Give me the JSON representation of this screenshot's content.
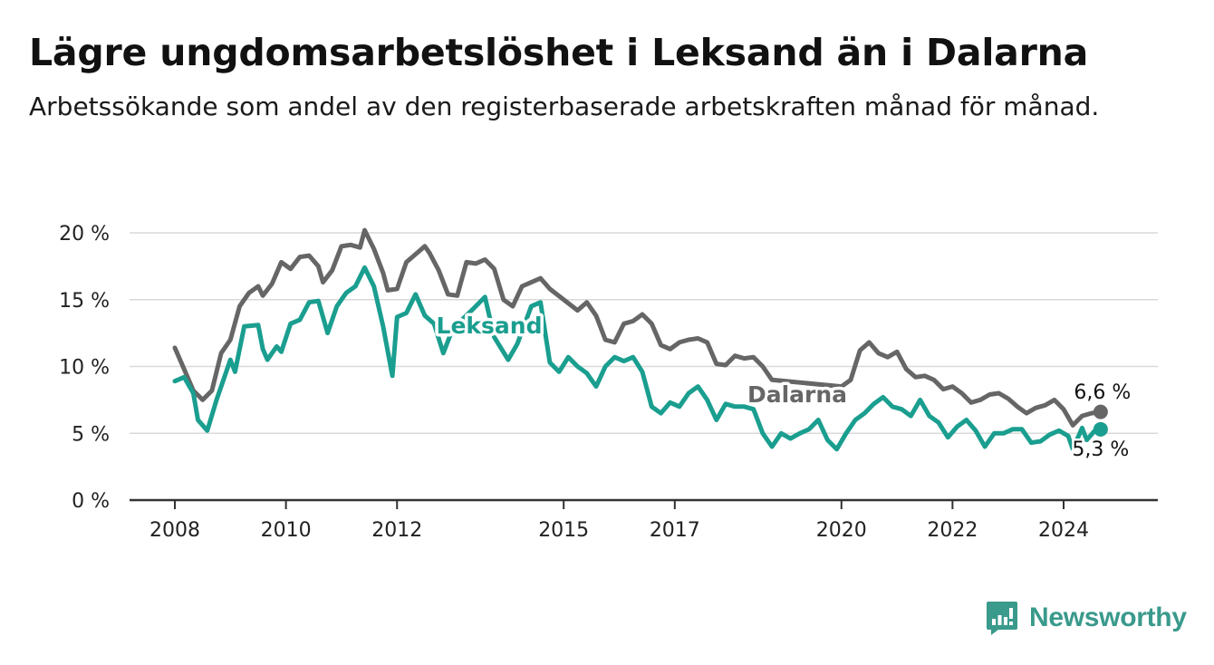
{
  "title": "Lägre ungdomsarbetslöshet i Leksand än i Dalarna",
  "subtitle": "Arbetssökande som andel av den registerbaserade arbetskraften månad för månad.",
  "brand": {
    "name": "Newsworthy",
    "icon": "newsworthy-logo-icon",
    "color": "#3a9a8c"
  },
  "chart_data": {
    "type": "line",
    "title": "Lägre ungdomsarbetslöshet i Leksand än i Dalarna",
    "subtitle": "Arbetssökande som andel av den registerbaserade arbetskraften månad för månad.",
    "xlabel": "",
    "ylabel": "",
    "ylim": [
      0,
      20
    ],
    "xlim": [
      "2008-01",
      "2025-06"
    ],
    "grid": true,
    "legend": "inline labels",
    "y_ticks": [
      0,
      5,
      10,
      15,
      20
    ],
    "y_tick_labels": [
      "0 %",
      "5 %",
      "10 %",
      "15 %",
      "20 %"
    ],
    "x_ticks": [
      "2008-01",
      "2010-01",
      "2012-01",
      "2015-01",
      "2017-01",
      "2020-01",
      "2022-01",
      "2024-01"
    ],
    "x_tick_labels": [
      "2008",
      "2010",
      "2012",
      "2015",
      "2017",
      "2020",
      "2022",
      "2024"
    ],
    "series": [
      {
        "name": "Dalarna",
        "color": "#666666",
        "end_value_label": "6,6 %",
        "points": [
          [
            "2008-01",
            11.4
          ],
          [
            "2008-03",
            9.8
          ],
          [
            "2008-05",
            8.2
          ],
          [
            "2008-07",
            7.5
          ],
          [
            "2008-09",
            8.2
          ],
          [
            "2008-11",
            11.0
          ],
          [
            "2009-01",
            12.0
          ],
          [
            "2009-03",
            14.5
          ],
          [
            "2009-05",
            15.5
          ],
          [
            "2009-07",
            16.0
          ],
          [
            "2009-08",
            15.3
          ],
          [
            "2009-10",
            16.2
          ],
          [
            "2009-12",
            17.8
          ],
          [
            "2010-02",
            17.3
          ],
          [
            "2010-04",
            18.2
          ],
          [
            "2010-06",
            18.3
          ],
          [
            "2010-08",
            17.5
          ],
          [
            "2010-09",
            16.3
          ],
          [
            "2010-11",
            17.2
          ],
          [
            "2011-01",
            19.0
          ],
          [
            "2011-03",
            19.1
          ],
          [
            "2011-05",
            18.9
          ],
          [
            "2011-06",
            20.2
          ],
          [
            "2011-08",
            18.8
          ],
          [
            "2011-10",
            17.0
          ],
          [
            "2011-11",
            15.7
          ],
          [
            "2012-01",
            15.8
          ],
          [
            "2012-03",
            17.8
          ],
          [
            "2012-05",
            18.4
          ],
          [
            "2012-07",
            19.0
          ],
          [
            "2012-08",
            18.5
          ],
          [
            "2012-10",
            17.2
          ],
          [
            "2012-12",
            15.4
          ],
          [
            "2013-02",
            15.3
          ],
          [
            "2013-04",
            17.8
          ],
          [
            "2013-06",
            17.7
          ],
          [
            "2013-08",
            18.0
          ],
          [
            "2013-10",
            17.3
          ],
          [
            "2013-12",
            15.0
          ],
          [
            "2014-02",
            14.5
          ],
          [
            "2014-04",
            16.0
          ],
          [
            "2014-06",
            16.3
          ],
          [
            "2014-08",
            16.6
          ],
          [
            "2014-10",
            15.8
          ],
          [
            "2015-04",
            14.2
          ],
          [
            "2015-06",
            14.8
          ],
          [
            "2015-08",
            13.8
          ],
          [
            "2015-10",
            12.0
          ],
          [
            "2015-12",
            11.8
          ],
          [
            "2016-02",
            13.2
          ],
          [
            "2016-04",
            13.4
          ],
          [
            "2016-06",
            13.9
          ],
          [
            "2016-08",
            13.2
          ],
          [
            "2016-10",
            11.6
          ],
          [
            "2016-12",
            11.3
          ],
          [
            "2017-02",
            11.8
          ],
          [
            "2017-04",
            12.0
          ],
          [
            "2017-06",
            12.1
          ],
          [
            "2017-08",
            11.8
          ],
          [
            "2017-10",
            10.2
          ],
          [
            "2017-12",
            10.1
          ],
          [
            "2018-02",
            10.8
          ],
          [
            "2018-04",
            10.6
          ],
          [
            "2018-06",
            10.7
          ],
          [
            "2018-08",
            10.0
          ],
          [
            "2018-10",
            9.0
          ],
          [
            "2020-01",
            8.5
          ],
          [
            "2020-03",
            9.0
          ],
          [
            "2020-05",
            11.2
          ],
          [
            "2020-07",
            11.8
          ],
          [
            "2020-09",
            11.0
          ],
          [
            "2020-11",
            10.7
          ],
          [
            "2021-01",
            11.1
          ],
          [
            "2021-03",
            9.8
          ],
          [
            "2021-05",
            9.2
          ],
          [
            "2021-07",
            9.3
          ],
          [
            "2021-09",
            9.0
          ],
          [
            "2021-11",
            8.3
          ],
          [
            "2022-01",
            8.5
          ],
          [
            "2022-03",
            8.0
          ],
          [
            "2022-05",
            7.3
          ],
          [
            "2022-07",
            7.5
          ],
          [
            "2022-09",
            7.9
          ],
          [
            "2022-11",
            8.0
          ],
          [
            "2023-01",
            7.6
          ],
          [
            "2023-03",
            7.0
          ],
          [
            "2023-05",
            6.5
          ],
          [
            "2023-07",
            6.9
          ],
          [
            "2023-09",
            7.1
          ],
          [
            "2023-11",
            7.5
          ],
          [
            "2024-01",
            6.8
          ],
          [
            "2024-03",
            5.6
          ],
          [
            "2024-05",
            6.3
          ],
          [
            "2024-07",
            6.5
          ],
          [
            "2024-09",
            6.6
          ]
        ]
      },
      {
        "name": "Leksand",
        "color": "#1a9e8f",
        "end_value_label": "5,3 %",
        "points": [
          [
            "2008-01",
            8.9
          ],
          [
            "2008-03",
            9.2
          ],
          [
            "2008-05",
            8.0
          ],
          [
            "2008-06",
            6.0
          ],
          [
            "2008-08",
            5.2
          ],
          [
            "2008-10",
            7.5
          ],
          [
            "2009-01",
            10.5
          ],
          [
            "2009-02",
            9.6
          ],
          [
            "2009-04",
            13.0
          ],
          [
            "2009-07",
            13.1
          ],
          [
            "2009-08",
            11.3
          ],
          [
            "2009-09",
            10.5
          ],
          [
            "2009-11",
            11.5
          ],
          [
            "2009-12",
            11.1
          ],
          [
            "2010-02",
            13.2
          ],
          [
            "2010-04",
            13.5
          ],
          [
            "2010-06",
            14.8
          ],
          [
            "2010-08",
            14.9
          ],
          [
            "2010-10",
            12.5
          ],
          [
            "2010-12",
            14.5
          ],
          [
            "2011-02",
            15.5
          ],
          [
            "2011-04",
            16.0
          ],
          [
            "2011-06",
            17.4
          ],
          [
            "2011-08",
            16.0
          ],
          [
            "2011-10",
            13.0
          ],
          [
            "2011-12",
            9.3
          ],
          [
            "2012-01",
            13.7
          ],
          [
            "2012-03",
            14.0
          ],
          [
            "2012-05",
            15.4
          ],
          [
            "2012-07",
            13.8
          ],
          [
            "2012-09",
            13.2
          ],
          [
            "2012-11",
            11.0
          ],
          [
            "2013-01",
            12.8
          ],
          [
            "2013-06",
            14.5
          ],
          [
            "2013-08",
            15.2
          ],
          [
            "2013-10",
            12.2
          ],
          [
            "2014-01",
            10.5
          ],
          [
            "2014-03",
            11.7
          ],
          [
            "2014-06",
            14.5
          ],
          [
            "2014-08",
            14.8
          ],
          [
            "2014-10",
            10.3
          ],
          [
            "2014-12",
            9.6
          ],
          [
            "2015-02",
            10.7
          ],
          [
            "2015-04",
            10.0
          ],
          [
            "2015-06",
            9.5
          ],
          [
            "2015-08",
            8.5
          ],
          [
            "2015-10",
            10.0
          ],
          [
            "2015-12",
            10.7
          ],
          [
            "2016-02",
            10.4
          ],
          [
            "2016-04",
            10.7
          ],
          [
            "2016-06",
            9.6
          ],
          [
            "2016-08",
            7.0
          ],
          [
            "2016-10",
            6.5
          ],
          [
            "2016-12",
            7.3
          ],
          [
            "2017-02",
            7.0
          ],
          [
            "2017-04",
            8.0
          ],
          [
            "2017-06",
            8.5
          ],
          [
            "2017-08",
            7.5
          ],
          [
            "2017-10",
            6.0
          ],
          [
            "2017-12",
            7.2
          ],
          [
            "2018-02",
            7.0
          ],
          [
            "2018-04",
            7.0
          ],
          [
            "2018-06",
            6.8
          ],
          [
            "2018-08",
            5.0
          ],
          [
            "2018-10",
            4.0
          ],
          [
            "2018-12",
            5.0
          ],
          [
            "2019-02",
            4.6
          ],
          [
            "2019-04",
            5.0
          ],
          [
            "2019-06",
            5.3
          ],
          [
            "2019-08",
            6.0
          ],
          [
            "2019-10",
            4.5
          ],
          [
            "2019-12",
            3.8
          ],
          [
            "2020-02",
            5.0
          ],
          [
            "2020-04",
            6.0
          ],
          [
            "2020-06",
            6.5
          ],
          [
            "2020-08",
            7.2
          ],
          [
            "2020-10",
            7.7
          ],
          [
            "2020-12",
            7.0
          ],
          [
            "2021-02",
            6.8
          ],
          [
            "2021-04",
            6.3
          ],
          [
            "2021-06",
            7.5
          ],
          [
            "2021-08",
            6.3
          ],
          [
            "2021-10",
            5.8
          ],
          [
            "2021-12",
            4.7
          ],
          [
            "2022-02",
            5.5
          ],
          [
            "2022-04",
            6.0
          ],
          [
            "2022-06",
            5.2
          ],
          [
            "2022-08",
            4.0
          ],
          [
            "2022-10",
            5.0
          ],
          [
            "2022-12",
            5.0
          ],
          [
            "2023-02",
            5.3
          ],
          [
            "2023-04",
            5.3
          ],
          [
            "2023-06",
            4.3
          ],
          [
            "2023-08",
            4.4
          ],
          [
            "2023-10",
            4.9
          ],
          [
            "2023-12",
            5.2
          ],
          [
            "2024-02",
            4.8
          ],
          [
            "2024-03",
            3.8
          ],
          [
            "2024-05",
            5.4
          ],
          [
            "2024-06",
            4.5
          ],
          [
            "2024-08",
            5.3
          ],
          [
            "2024-09",
            5.3
          ]
        ]
      }
    ]
  }
}
